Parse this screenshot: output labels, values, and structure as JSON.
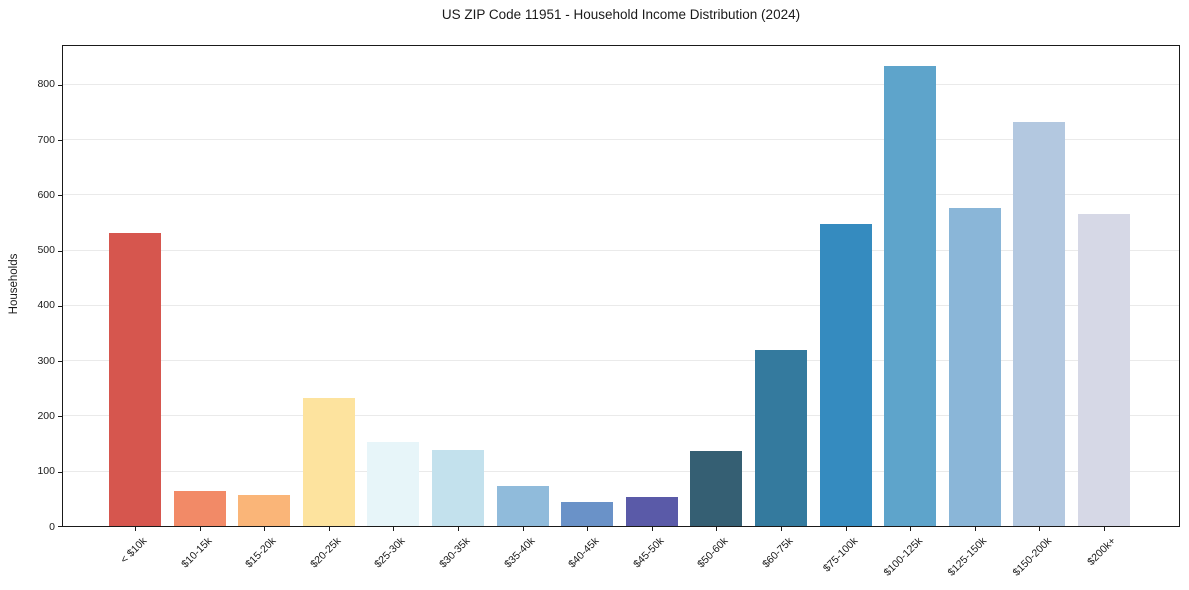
{
  "chart_data": {
    "type": "bar",
    "title": "US ZIP Code 11951 - Household Income Distribution (2024)",
    "xlabel": "",
    "ylabel": "Households",
    "categories": [
      "< $10k",
      "$10-15k",
      "$15-20k",
      "$20-25k",
      "$25-30k",
      "$30-35k",
      "$35-40k",
      "$40-45k",
      "$45-50k",
      "$50-60k",
      "$60-75k",
      "$75-100k",
      "$100-125k",
      "$125-150k",
      "$150-200k",
      "$200k+"
    ],
    "values": [
      530,
      64,
      57,
      231,
      152,
      137,
      72,
      44,
      52,
      135,
      318,
      547,
      832,
      576,
      731,
      565
    ],
    "bar_colors": [
      "#d6564e",
      "#f28a67",
      "#fab578",
      "#fde39e",
      "#e7f5f9",
      "#c3e1ed",
      "#90bbdb",
      "#6a92c8",
      "#5a5aa8",
      "#355f73",
      "#347a9e",
      "#358bbf",
      "#5ea4cb",
      "#8ab6d8",
      "#b3c8e0",
      "#d6d8e6"
    ],
    "ylim": [
      0,
      872
    ],
    "yticks": [
      0,
      100,
      200,
      300,
      400,
      500,
      600,
      700,
      800
    ],
    "grid": "horizontal",
    "grid_color": "#eaeaea",
    "spine_color": "#1a1a1a",
    "background_color": "#ffffff",
    "legend": "none",
    "x_label_rotation_deg": 45
  }
}
